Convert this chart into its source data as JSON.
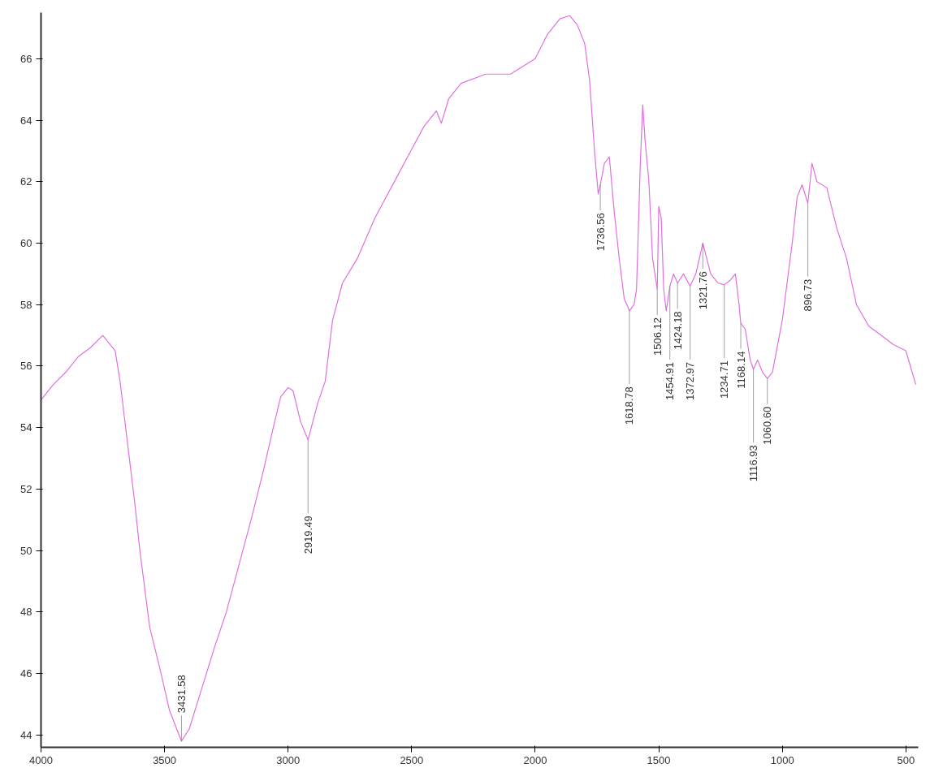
{
  "chart_data": {
    "type": "line",
    "color": "#e070e0",
    "grid": false,
    "marker": "none",
    "line_style": "solid",
    "xlim": [
      4000,
      450
    ],
    "ylim": [
      43.6,
      67.5
    ],
    "xticks": [
      4000,
      3500,
      3000,
      2500,
      2000,
      1500,
      1000,
      500
    ],
    "yticks": [
      44,
      46,
      48,
      50,
      52,
      54,
      56,
      58,
      60,
      62,
      64,
      66
    ],
    "x": [
      4000,
      3950,
      3900,
      3850,
      3800,
      3750,
      3700,
      3680,
      3650,
      3620,
      3600,
      3560,
      3520,
      3480,
      3431.58,
      3400,
      3350,
      3300,
      3250,
      3200,
      3150,
      3100,
      3060,
      3030,
      3000,
      2980,
      2950,
      2919.49,
      2880,
      2850,
      2820,
      2780,
      2720,
      2650,
      2550,
      2450,
      2400,
      2380,
      2350,
      2300,
      2200,
      2100,
      2000,
      1950,
      1900,
      1860,
      1830,
      1800,
      1780,
      1760,
      1745,
      1736.56,
      1720,
      1700,
      1680,
      1660,
      1640,
      1618.78,
      1600,
      1590,
      1575,
      1565,
      1555,
      1540,
      1525,
      1506.12,
      1500,
      1490,
      1480,
      1470,
      1454.91,
      1440,
      1424.18,
      1400,
      1372.97,
      1350,
      1321.76,
      1290,
      1260,
      1234.71,
      1210,
      1190,
      1175,
      1168.14,
      1150,
      1130,
      1116.93,
      1100,
      1080,
      1060.6,
      1040,
      1000,
      960,
      940,
      920,
      896.73,
      880,
      860,
      820,
      780,
      740,
      700,
      650,
      600,
      550,
      500,
      460
    ],
    "values": [
      54.9,
      55.4,
      55.8,
      56.3,
      56.6,
      57.0,
      56.5,
      55.5,
      53.5,
      51.5,
      50.0,
      47.5,
      46.2,
      44.8,
      43.8,
      44.2,
      45.5,
      46.8,
      48.0,
      49.5,
      51.0,
      52.6,
      54.0,
      55.0,
      55.3,
      55.2,
      54.2,
      53.6,
      54.8,
      55.5,
      57.5,
      58.7,
      59.5,
      60.8,
      62.3,
      63.8,
      64.3,
      63.9,
      64.7,
      65.2,
      65.5,
      65.5,
      66.0,
      66.8,
      67.3,
      67.4,
      67.1,
      66.5,
      65.3,
      63.0,
      61.6,
      61.9,
      62.6,
      62.8,
      61.0,
      59.5,
      58.2,
      57.8,
      58.0,
      58.5,
      62.5,
      64.5,
      63.3,
      62.0,
      59.5,
      58.5,
      61.2,
      60.8,
      58.5,
      57.8,
      58.6,
      59.0,
      58.7,
      59.0,
      58.6,
      59.0,
      60.0,
      59.0,
      58.7,
      58.65,
      58.8,
      59.0,
      58.0,
      57.4,
      57.2,
      56.2,
      55.9,
      56.2,
      55.8,
      55.6,
      55.8,
      57.5,
      60.0,
      61.5,
      61.9,
      61.3,
      62.6,
      62.0,
      61.8,
      60.5,
      59.5,
      58.0,
      57.3,
      57.0,
      56.7,
      56.5,
      55.4
    ],
    "annotations": [
      {
        "text": "3431.58",
        "x": 3431.58,
        "y": 43.8
      },
      {
        "text": "2919.49",
        "x": 2919.49,
        "y": 53.6
      },
      {
        "text": "1736.56",
        "x": 1736.56,
        "y": 61.9
      },
      {
        "text": "1618.78",
        "x": 1618.78,
        "y": 57.8
      },
      {
        "text": "1506.12",
        "x": 1506.12,
        "y": 58.5
      },
      {
        "text": "1454.91",
        "x": 1454.91,
        "y": 58.6
      },
      {
        "text": "1424.18",
        "x": 1424.18,
        "y": 58.7
      },
      {
        "text": "1372.97",
        "x": 1372.97,
        "y": 58.6
      },
      {
        "text": "1321.76",
        "x": 1321.76,
        "y": 60.0
      },
      {
        "text": "1234.71",
        "x": 1234.71,
        "y": 58.65
      },
      {
        "text": "1168.14",
        "x": 1168.14,
        "y": 57.4
      },
      {
        "text": "1116.93",
        "x": 1116.93,
        "y": 55.9
      },
      {
        "text": "1060.60",
        "x": 1060.6,
        "y": 55.6
      },
      {
        "text": "896.73",
        "x": 896.73,
        "y": 61.3
      }
    ]
  }
}
